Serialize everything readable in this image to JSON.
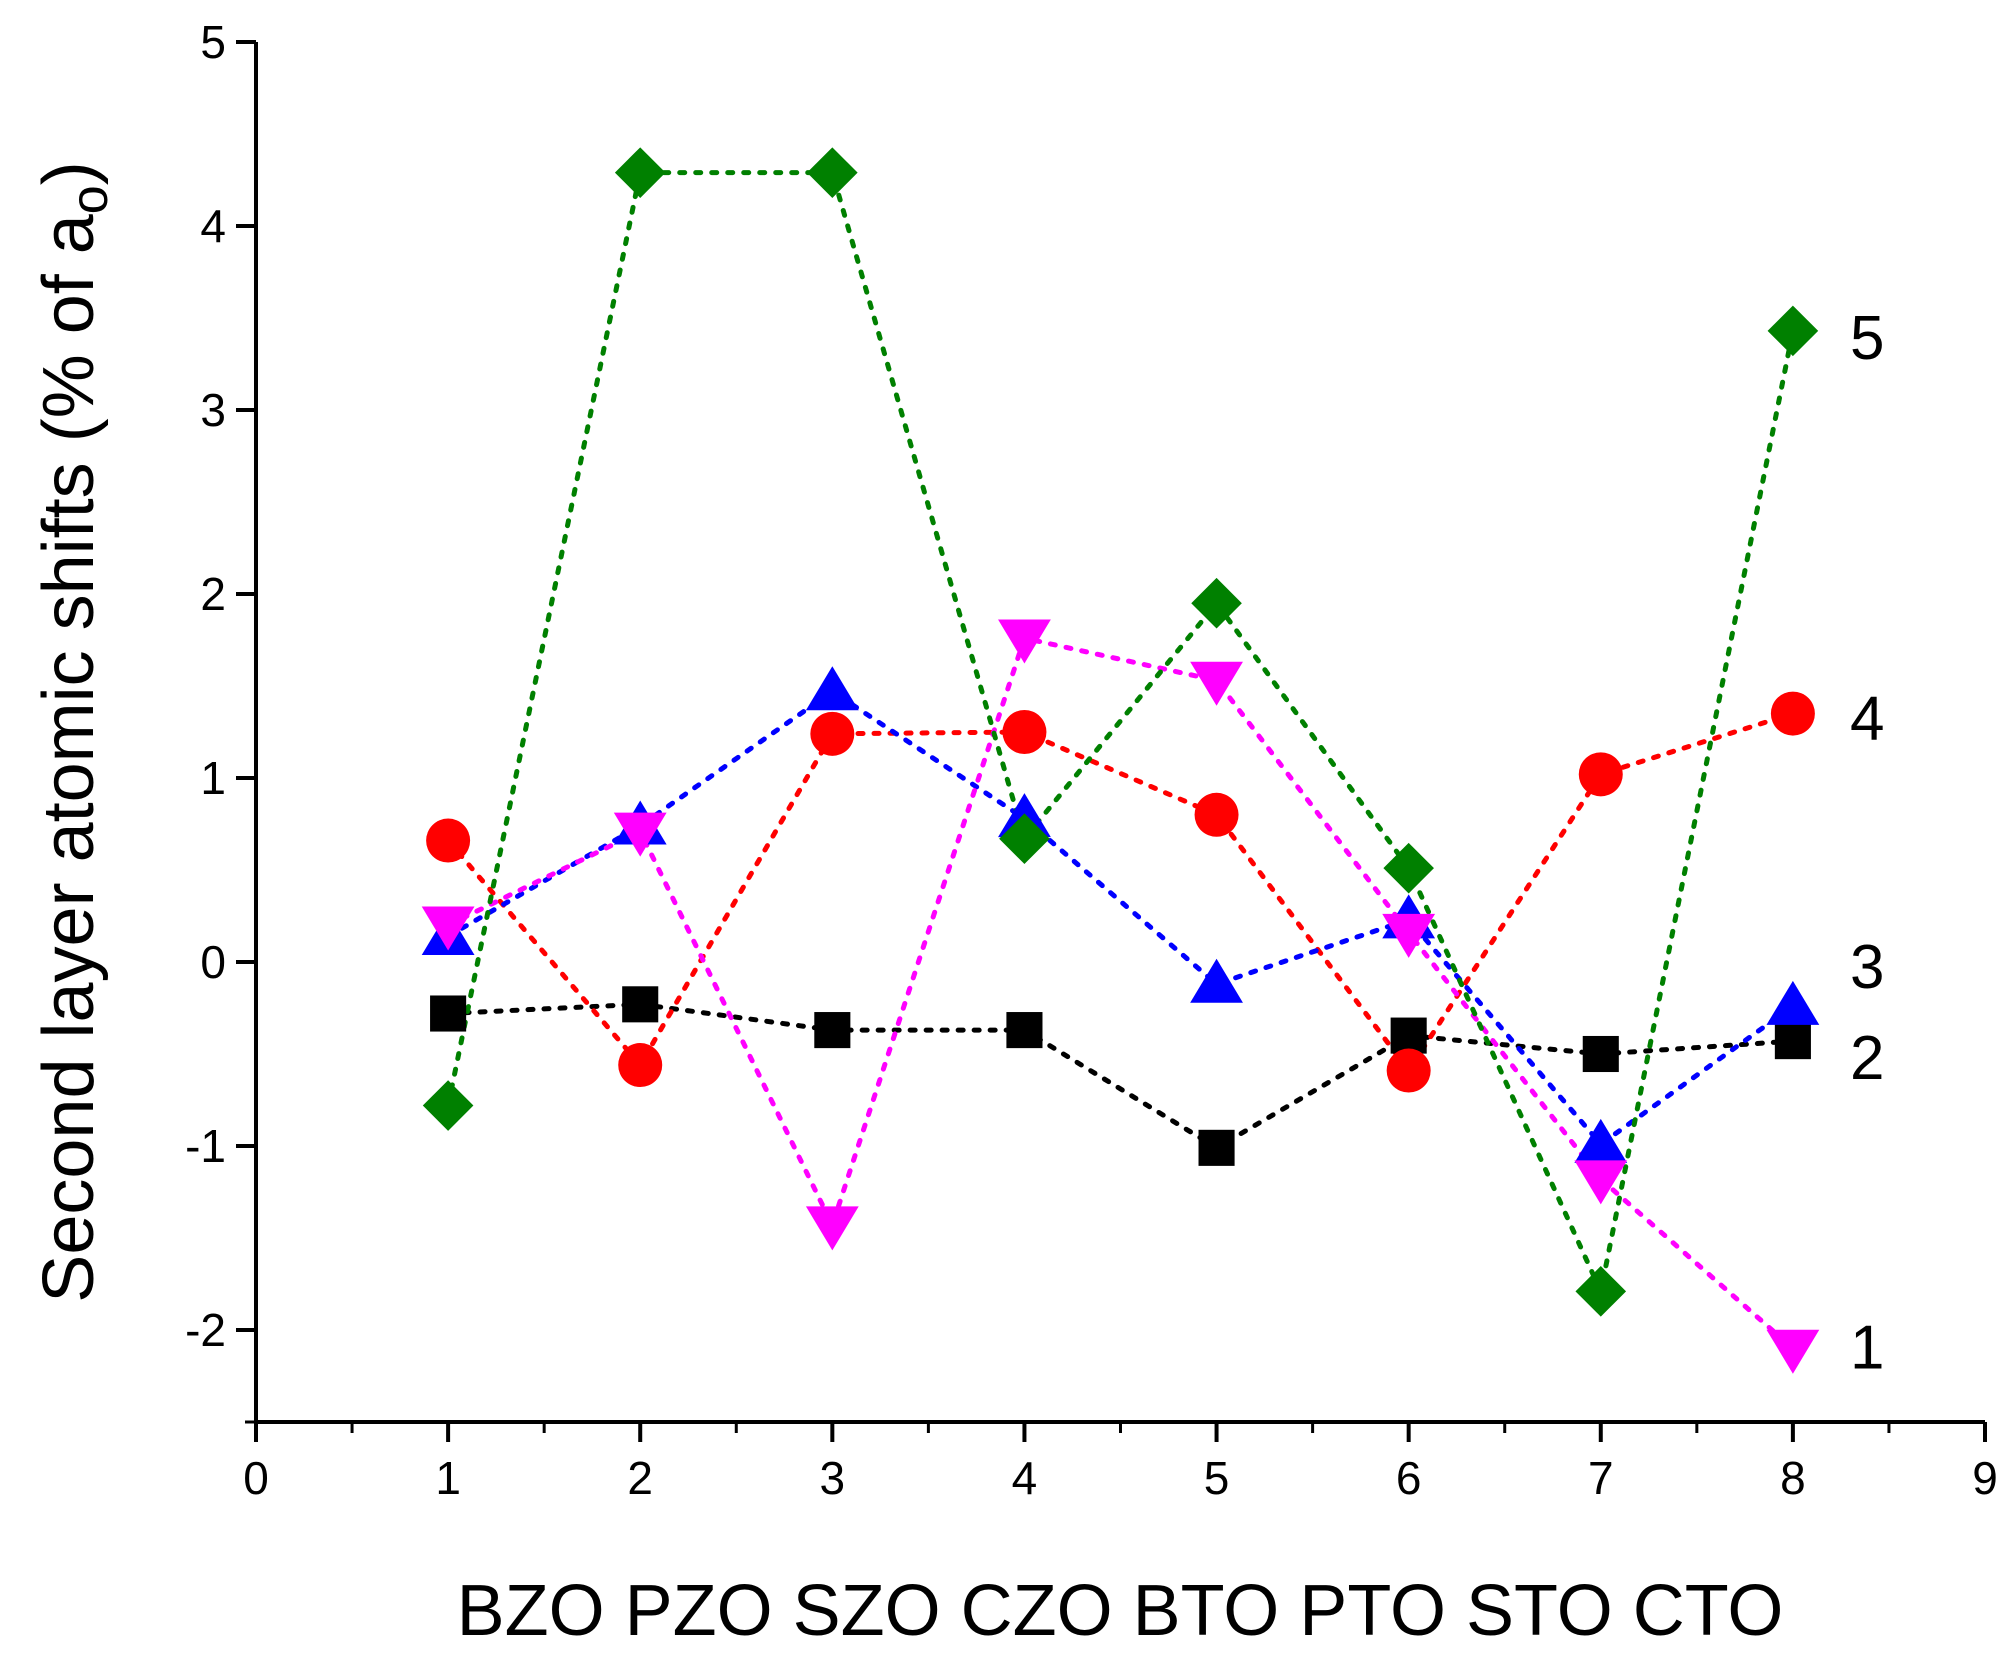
{
  "chart_data": {
    "type": "scatter",
    "ylabel": "Second layer atomic shifts (% of a",
    "ylabel_subscript": "o",
    "ylabel_close": ")",
    "xlabel": "BZO PZO SZO CZO BTO PTO STO CTO",
    "xlim": [
      0,
      9
    ],
    "ylim": [
      -2.5,
      5
    ],
    "x_ticks": [
      0,
      1,
      2,
      3,
      4,
      5,
      6,
      7,
      8,
      9
    ],
    "y_ticks": [
      -2,
      -1,
      0,
      1,
      2,
      3,
      4,
      5
    ],
    "x_tick_labels": [
      "0",
      "1",
      "2",
      "3",
      "4",
      "5",
      "6",
      "7",
      "8",
      "9"
    ],
    "y_tick_labels": [
      "-2",
      "-1",
      "0",
      "1",
      "2",
      "3",
      "4",
      "5"
    ],
    "grid": false,
    "series": [
      {
        "label": "2",
        "color": "#000000",
        "marker": "square",
        "x": [
          1,
          2,
          3,
          4,
          5,
          6,
          7,
          8
        ],
        "y": [
          -0.28,
          -0.23,
          -0.37,
          -0.37,
          -1.01,
          -0.4,
          -0.5,
          -0.43
        ]
      },
      {
        "label": "4",
        "color": "#ff0000",
        "marker": "circle",
        "x": [
          1,
          2,
          3,
          4,
          5,
          6,
          7,
          8
        ],
        "y": [
          0.66,
          -0.56,
          1.24,
          1.25,
          0.8,
          -0.59,
          1.02,
          1.35
        ]
      },
      {
        "label": "3",
        "color": "#0000ff",
        "marker": "triangle-up",
        "x": [
          1,
          2,
          3,
          4,
          5,
          6,
          7,
          8
        ],
        "y": [
          0.14,
          0.74,
          1.47,
          0.78,
          -0.12,
          0.23,
          -0.99,
          -0.24
        ]
      },
      {
        "label": "1",
        "color": "#ff00ff",
        "marker": "triangle-down",
        "x": [
          1,
          2,
          3,
          4,
          5,
          6,
          7,
          8
        ],
        "y": [
          0.2,
          0.71,
          -1.43,
          1.76,
          1.53,
          0.16,
          -1.18,
          -2.1
        ]
      },
      {
        "label": "5",
        "color": "#008000",
        "marker": "diamond",
        "x": [
          1,
          2,
          3,
          4,
          5,
          6,
          7,
          8
        ],
        "y": [
          -0.78,
          4.29,
          4.29,
          0.67,
          1.95,
          0.51,
          -1.79,
          3.43
        ]
      }
    ]
  }
}
